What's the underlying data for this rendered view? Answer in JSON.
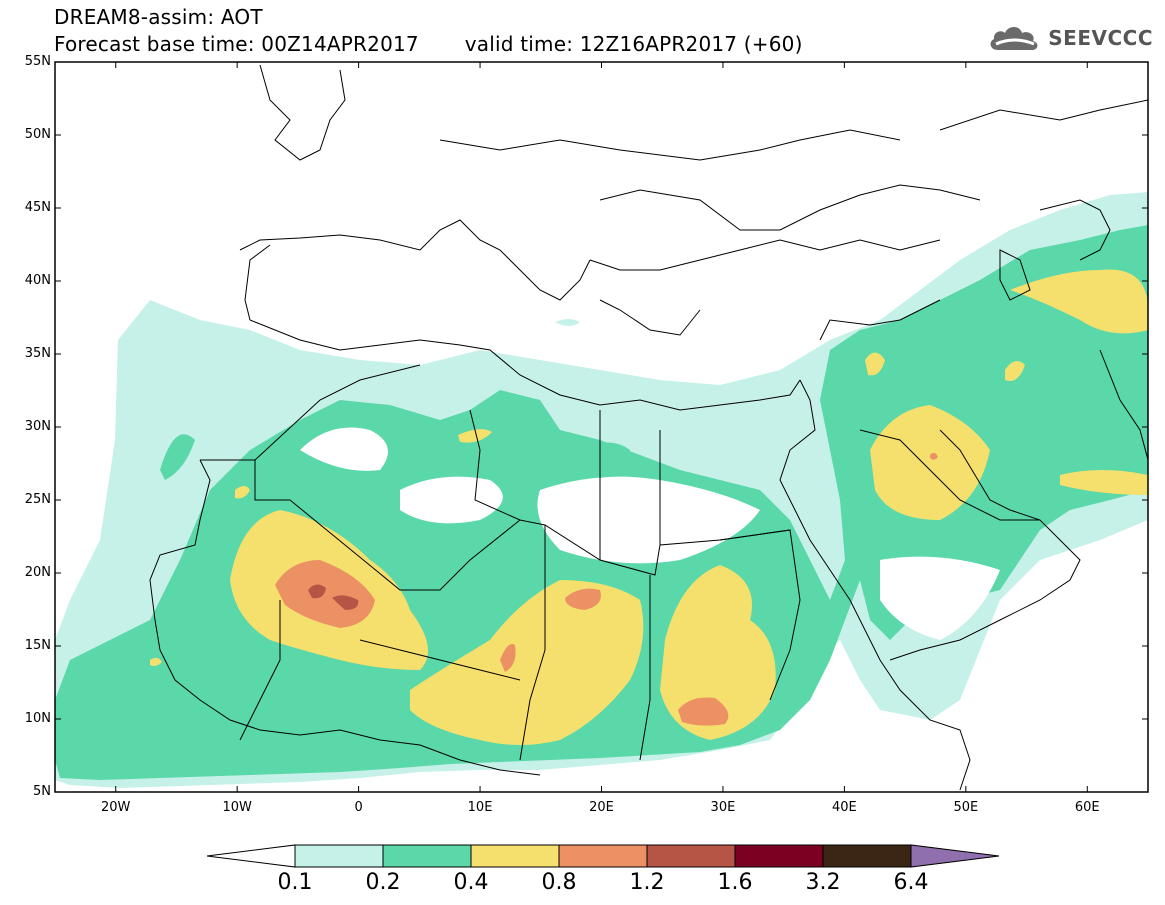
{
  "header": {
    "title": "DREAM8-assim: AOT",
    "base_time_label": "Forecast base time: 00Z14APR2017",
    "valid_time_label": "valid time: 12Z16APR2017 (+60)"
  },
  "logo": {
    "text": "SEEVCCC",
    "icon": "cloud-icon"
  },
  "map": {
    "lon_range": [
      -25,
      65
    ],
    "lat_range": [
      5,
      55
    ],
    "y_axis_labels": [
      "55N",
      "50N",
      "45N",
      "40N",
      "35N",
      "30N",
      "25N",
      "20N",
      "15N",
      "10N",
      "5N"
    ],
    "x_axis_labels": [
      "20W",
      "10W",
      "0",
      "10E",
      "20E",
      "30E",
      "40E",
      "50E",
      "60E"
    ]
  },
  "legend": {
    "colors": [
      "#ffffff",
      "#c6f1e9",
      "#5ad8a9",
      "#f5e06e",
      "#eb9163",
      "#b65546",
      "#7c0022",
      "#3b2616",
      "#8f6fad"
    ],
    "labels": [
      "0.1",
      "0.2",
      "0.4",
      "0.8",
      "1.2",
      "1.6",
      "3.2",
      "6.4"
    ]
  }
}
